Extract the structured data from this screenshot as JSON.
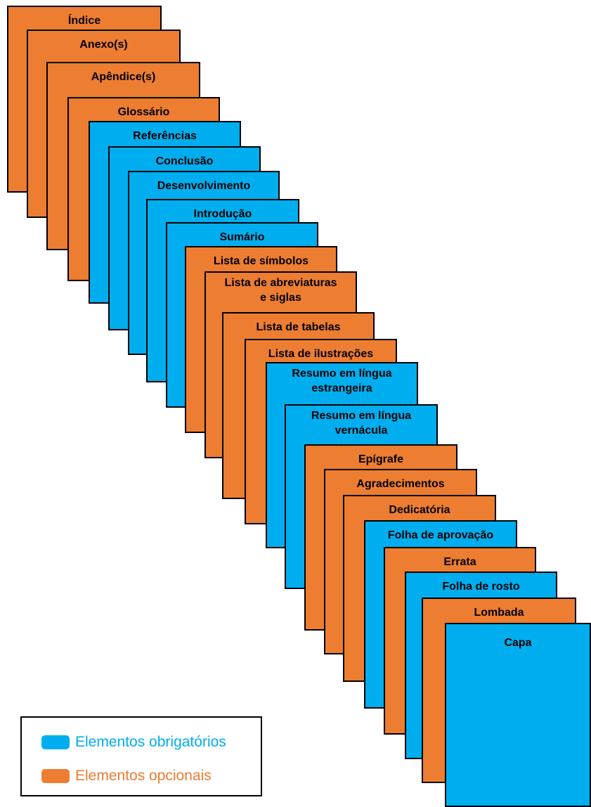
{
  "colors": {
    "required": "#00aeef",
    "optional": "#ed7d31",
    "border": "#000000"
  },
  "pages": [
    {
      "label": "Índice",
      "kind": "optional"
    },
    {
      "label": "Anexo(s)",
      "kind": "optional"
    },
    {
      "label": "Apêndice(s)",
      "kind": "optional"
    },
    {
      "label": "Glossário",
      "kind": "optional"
    },
    {
      "label": "Referências",
      "kind": "required"
    },
    {
      "label": "Conclusão",
      "kind": "required"
    },
    {
      "label": "Desenvolvimento",
      "kind": "required"
    },
    {
      "label": "Introdução",
      "kind": "required"
    },
    {
      "label": "Sumário",
      "kind": "required"
    },
    {
      "label": "Lista de símbolos",
      "kind": "optional"
    },
    {
      "label": "Lista de abreviaturas\ne siglas",
      "kind": "optional"
    },
    {
      "label": "Lista de tabelas",
      "kind": "optional"
    },
    {
      "label": "Lista de ilustrações",
      "kind": "optional"
    },
    {
      "label": "Resumo em língua\nestrangeira",
      "kind": "required"
    },
    {
      "label": "Resumo em língua\nvernácula",
      "kind": "required"
    },
    {
      "label": "Epígrafe",
      "kind": "optional"
    },
    {
      "label": "Agradecimentos",
      "kind": "optional"
    },
    {
      "label": "Dedicatória",
      "kind": "optional"
    },
    {
      "label": "Folha de aprovação",
      "kind": "required"
    },
    {
      "label": "Errata",
      "kind": "optional"
    },
    {
      "label": "Folha de rosto",
      "kind": "required"
    },
    {
      "label": "Lombada",
      "kind": "optional"
    },
    {
      "label": "Capa",
      "kind": "required"
    }
  ],
  "legend": {
    "required_label": "Elementos obrigatórios",
    "optional_label": "Elementos opcionais"
  }
}
